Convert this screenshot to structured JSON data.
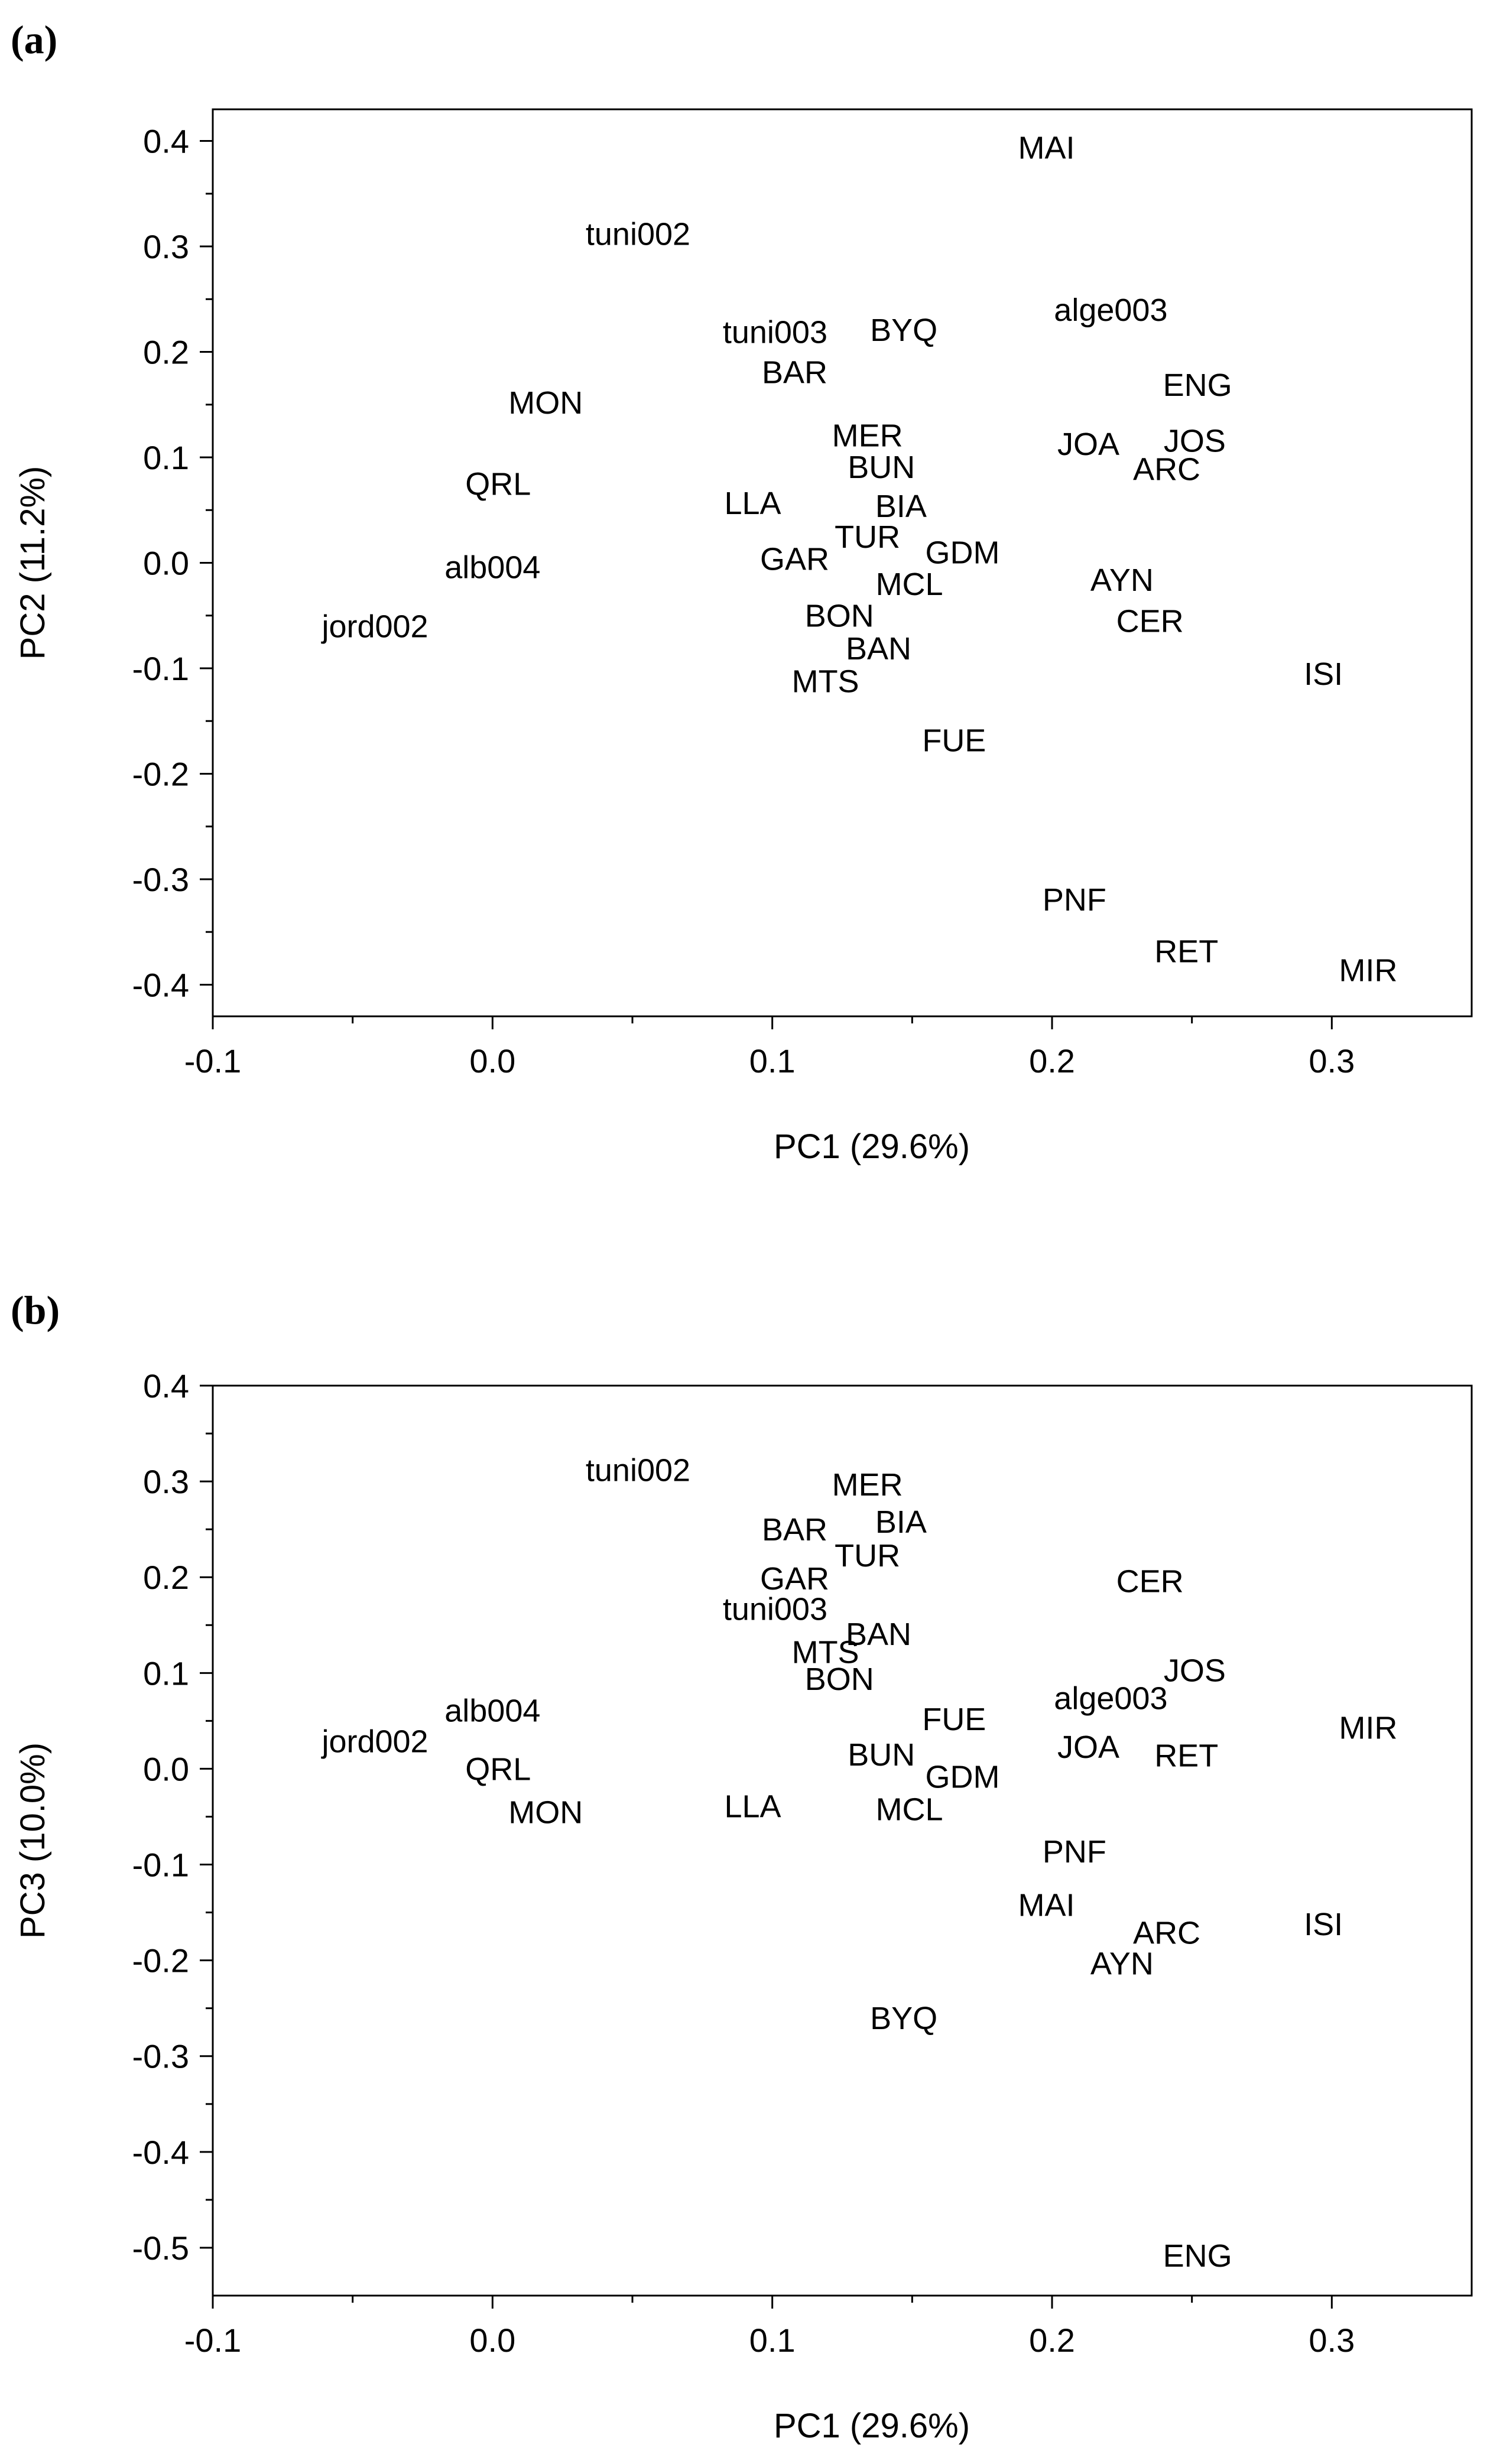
{
  "chart_data": [
    {
      "panel": "(a)",
      "type": "scatter",
      "title": "",
      "xlabel": "PC1 (29.6%)",
      "ylabel": "PC2 (11.2%)",
      "xlim": [
        -0.1,
        0.35
      ],
      "ylim": [
        -0.43,
        0.43
      ],
      "xticks": [
        -0.1,
        0.0,
        0.1,
        0.2,
        0.3
      ],
      "xtick_labels": [
        "-0.1",
        "0.0",
        "0.1",
        "0.2",
        "0.3"
      ],
      "yticks": [
        0.4,
        0.3,
        0.2,
        0.1,
        0.0,
        -0.1,
        -0.2,
        -0.3,
        -0.4
      ],
      "ytick_labels": [
        "0.4",
        "0.3",
        "0.2",
        "0.1",
        "0.0",
        "-0.1",
        "-0.2",
        "-0.3",
        "-0.4"
      ],
      "grid": false,
      "legend": "none",
      "points": [
        {
          "label": "MAI",
          "x": 0.198,
          "y": 0.394
        },
        {
          "label": "tuni002",
          "x": 0.052,
          "y": 0.312
        },
        {
          "label": "alge003",
          "x": 0.221,
          "y": 0.24
        },
        {
          "label": "tuni003",
          "x": 0.101,
          "y": 0.219
        },
        {
          "label": "BYQ",
          "x": 0.147,
          "y": 0.221
        },
        {
          "label": "BAR",
          "x": 0.108,
          "y": 0.181
        },
        {
          "label": "ENG",
          "x": 0.252,
          "y": 0.169
        },
        {
          "label": "MON",
          "x": 0.019,
          "y": 0.152
        },
        {
          "label": "MER",
          "x": 0.134,
          "y": 0.121
        },
        {
          "label": "JOA",
          "x": 0.213,
          "y": 0.113
        },
        {
          "label": "JOS",
          "x": 0.251,
          "y": 0.116
        },
        {
          "label": "BUN",
          "x": 0.139,
          "y": 0.091
        },
        {
          "label": "ARC",
          "x": 0.241,
          "y": 0.089
        },
        {
          "label": "QRL",
          "x": 0.002,
          "y": 0.075
        },
        {
          "label": "LLA",
          "x": 0.093,
          "y": 0.057
        },
        {
          "label": "BIA",
          "x": 0.146,
          "y": 0.054
        },
        {
          "label": "TUR",
          "x": 0.134,
          "y": 0.025
        },
        {
          "label": "GDM",
          "x": 0.168,
          "y": 0.01
        },
        {
          "label": "GAR",
          "x": 0.108,
          "y": 0.004
        },
        {
          "label": "alb004",
          "x": 0.0,
          "y": -0.004
        },
        {
          "label": "MCL",
          "x": 0.149,
          "y": -0.02
        },
        {
          "label": "AYN",
          "x": 0.225,
          "y": -0.016
        },
        {
          "label": "BON",
          "x": 0.124,
          "y": -0.05
        },
        {
          "label": "CER",
          "x": 0.235,
          "y": -0.055
        },
        {
          "label": "jord002",
          "x": -0.042,
          "y": -0.06
        },
        {
          "label": "BAN",
          "x": 0.138,
          "y": -0.081
        },
        {
          "label": "ISI",
          "x": 0.297,
          "y": -0.105
        },
        {
          "label": "MTS",
          "x": 0.119,
          "y": -0.112
        },
        {
          "label": "FUE",
          "x": 0.165,
          "y": -0.168
        },
        {
          "label": "PNF",
          "x": 0.208,
          "y": -0.319
        },
        {
          "label": "RET",
          "x": 0.248,
          "y": -0.368
        },
        {
          "label": "MIR",
          "x": 0.313,
          "y": -0.386
        }
      ]
    },
    {
      "panel": "(b)",
      "type": "scatter",
      "title": "",
      "xlabel": "PC1 (29.6%)",
      "ylabel": "PC3 (10.0%)",
      "xlim": [
        -0.1,
        0.35
      ],
      "ylim": [
        -0.55,
        0.4
      ],
      "xticks": [
        -0.1,
        0.0,
        0.1,
        0.2,
        0.3
      ],
      "xtick_labels": [
        "-0.1",
        "0.0",
        "0.1",
        "0.2",
        "0.3"
      ],
      "yticks": [
        0.4,
        0.3,
        0.2,
        0.1,
        0.0,
        -0.1,
        -0.2,
        -0.3,
        -0.4,
        -0.5
      ],
      "ytick_labels": [
        "0.4",
        "0.3",
        "0.2",
        "0.1",
        "0.0",
        "-0.1",
        "-0.2",
        "-0.3",
        "-0.4",
        "-0.5"
      ],
      "grid": false,
      "legend": "none",
      "points": [
        {
          "label": "tuni002",
          "x": 0.052,
          "y": 0.312
        },
        {
          "label": "MER",
          "x": 0.134,
          "y": 0.297
        },
        {
          "label": "BIA",
          "x": 0.146,
          "y": 0.258
        },
        {
          "label": "BAR",
          "x": 0.108,
          "y": 0.25
        },
        {
          "label": "TUR",
          "x": 0.134,
          "y": 0.223
        },
        {
          "label": "GAR",
          "x": 0.108,
          "y": 0.199
        },
        {
          "label": "CER",
          "x": 0.235,
          "y": 0.196
        },
        {
          "label": "tuni003",
          "x": 0.101,
          "y": 0.167
        },
        {
          "label": "BAN",
          "x": 0.138,
          "y": 0.141
        },
        {
          "label": "MTS",
          "x": 0.119,
          "y": 0.122
        },
        {
          "label": "JOS",
          "x": 0.251,
          "y": 0.103
        },
        {
          "label": "BON",
          "x": 0.124,
          "y": 0.094
        },
        {
          "label": "alge003",
          "x": 0.221,
          "y": 0.074
        },
        {
          "label": "alb004",
          "x": 0.0,
          "y": 0.061
        },
        {
          "label": "FUE",
          "x": 0.165,
          "y": 0.052
        },
        {
          "label": "MIR",
          "x": 0.313,
          "y": 0.043
        },
        {
          "label": "jord002",
          "x": -0.042,
          "y": 0.029
        },
        {
          "label": "JOA",
          "x": 0.213,
          "y": 0.023
        },
        {
          "label": "BUN",
          "x": 0.139,
          "y": 0.015
        },
        {
          "label": "RET",
          "x": 0.248,
          "y": 0.014
        },
        {
          "label": "QRL",
          "x": 0.002,
          "y": 0.0
        },
        {
          "label": "GDM",
          "x": 0.168,
          "y": -0.008
        },
        {
          "label": "LLA",
          "x": 0.093,
          "y": -0.039
        },
        {
          "label": "MCL",
          "x": 0.149,
          "y": -0.042
        },
        {
          "label": "MON",
          "x": 0.019,
          "y": -0.045
        },
        {
          "label": "PNF",
          "x": 0.208,
          "y": -0.086
        },
        {
          "label": "MAI",
          "x": 0.198,
          "y": -0.142
        },
        {
          "label": "ARC",
          "x": 0.241,
          "y": -0.171
        },
        {
          "label": "ISI",
          "x": 0.297,
          "y": -0.162
        },
        {
          "label": "AYN",
          "x": 0.225,
          "y": -0.203
        },
        {
          "label": "BYQ",
          "x": 0.147,
          "y": -0.26
        },
        {
          "label": "ENG",
          "x": 0.252,
          "y": -0.508
        }
      ]
    }
  ]
}
